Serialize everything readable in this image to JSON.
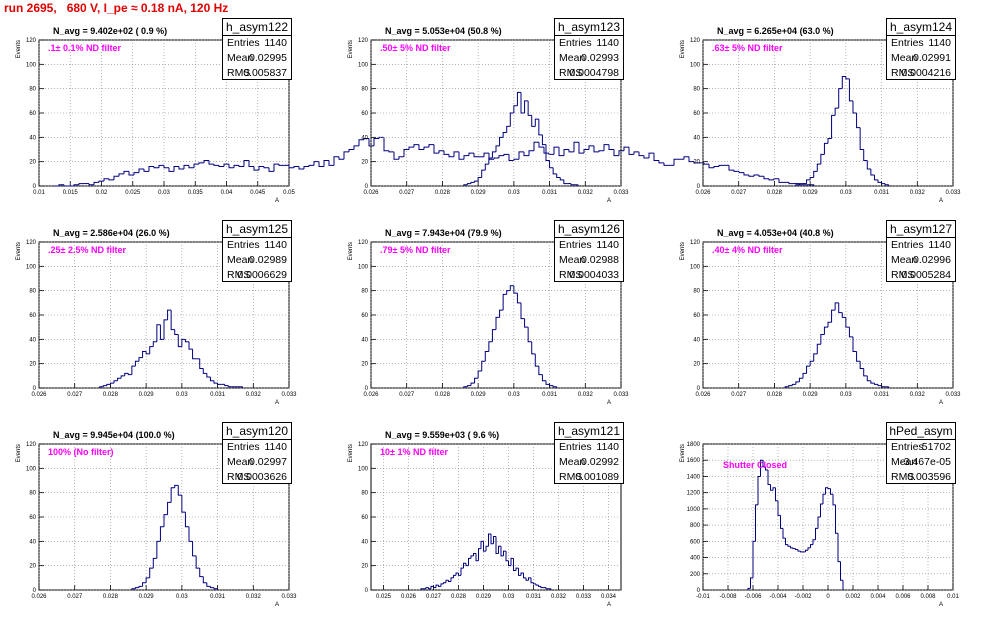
{
  "title": "run 2695,   680 V, I_pe ≈ 0.18 nA, 120 Hz",
  "chart_data": [
    {
      "type": "bar",
      "ylabel": "Events",
      "xlabel": "A",
      "xlim": [
        0.01,
        0.05
      ],
      "ylim": [
        0,
        120
      ],
      "xticks": [
        0.01,
        0.015,
        0.02,
        0.025,
        0.03,
        0.035,
        0.04,
        0.045,
        0.05
      ],
      "xtick_labels": [
        "0.01",
        "0.015",
        "0.02",
        "0.025",
        "0.03",
        "0.035",
        "0.04",
        "0.045",
        "0.05"
      ],
      "yticks": [
        0,
        20,
        40,
        60,
        80,
        100,
        120
      ],
      "ytick_labels": [
        "0",
        "20",
        "40",
        "60",
        "80",
        "100",
        "120"
      ],
      "grid": true,
      "bin_low": 0.0124,
      "bin_width": 0.0008,
      "values": [
        0,
        1,
        0,
        0,
        1,
        2,
        2,
        1,
        3,
        4,
        6,
        5,
        8,
        10,
        12,
        9,
        11,
        14,
        12,
        16,
        15,
        17,
        15,
        12,
        16,
        14,
        17,
        15,
        18,
        19,
        21,
        18,
        17,
        16,
        18,
        15,
        17,
        16,
        21,
        16,
        13,
        16,
        15,
        12,
        18,
        17,
        17,
        15,
        16,
        14,
        16,
        17,
        20,
        16,
        21,
        17,
        24,
        22,
        28,
        30,
        33,
        38,
        39,
        33,
        39,
        40,
        29,
        28,
        22,
        24,
        30,
        32,
        34,
        30,
        32,
        34,
        27,
        29,
        26,
        24,
        28,
        22,
        25,
        27,
        24,
        24,
        27,
        22,
        23,
        25,
        26,
        21,
        22,
        28,
        25,
        29,
        36,
        32,
        27,
        26,
        32,
        25,
        30,
        28,
        36,
        27,
        30,
        33,
        28,
        29,
        34,
        30,
        25,
        29,
        32,
        26,
        28,
        25,
        23,
        27,
        21,
        19,
        17,
        17,
        22,
        22,
        24,
        20,
        19,
        19,
        18,
        15,
        16,
        17,
        17,
        13,
        12,
        11,
        9,
        8,
        9,
        8,
        6,
        5,
        6,
        3,
        3,
        2,
        2,
        1,
        1,
        1
      ],
      "stats": {
        "name": "h_asym122",
        "entries": "1140",
        "mean": "0.02995",
        "rms": "0.005837"
      },
      "annotations": [
        "N_avg = 9.402e+02 ( 0.9 %)",
        ".1± 0.1% ND filter"
      ]
    },
    {
      "type": "bar",
      "ylabel": "Events",
      "xlabel": "A",
      "xlim": [
        0.026,
        0.033
      ],
      "ylim": [
        0,
        120
      ],
      "xticks": [
        0.026,
        0.027,
        0.028,
        0.029,
        0.03,
        0.031,
        0.032,
        0.033
      ],
      "xtick_labels": [
        "0.026",
        "0.027",
        "0.028",
        "0.029",
        "0.03",
        "0.031",
        "0.032",
        "0.033"
      ],
      "yticks": [
        0,
        20,
        40,
        60,
        80,
        100,
        120
      ],
      "ytick_labels": [
        "0",
        "20",
        "40",
        "60",
        "80",
        "100",
        "120"
      ],
      "grid": true,
      "bin_low": 0.0286,
      "bin_width": 0.0001,
      "values": [
        1,
        2,
        3,
        4,
        7,
        13,
        18,
        23,
        28,
        33,
        40,
        44,
        49,
        60,
        66,
        77,
        60,
        70,
        58,
        49,
        55,
        42,
        34,
        21,
        15,
        10,
        7,
        5,
        2,
        2,
        1,
        1
      ],
      "stats": {
        "name": "h_asym123",
        "entries": "1140",
        "mean": "0.02993",
        "rms": "0.0004798"
      },
      "annotations": [
        "N_avg = 5.053e+04 (50.8 %)",
        ".50± 5% ND filter"
      ]
    },
    {
      "type": "bar",
      "ylabel": "Events",
      "xlabel": "A",
      "xlim": [
        0.026,
        0.033
      ],
      "ylim": [
        0,
        120
      ],
      "xticks": [
        0.026,
        0.027,
        0.028,
        0.029,
        0.03,
        0.031,
        0.032,
        0.033
      ],
      "xtick_labels": [
        "0.026",
        "0.027",
        "0.028",
        "0.029",
        "0.03",
        "0.031",
        "0.032",
        "0.033"
      ],
      "yticks": [
        0,
        20,
        40,
        60,
        80,
        100,
        120
      ],
      "ytick_labels": [
        "0",
        "20",
        "40",
        "60",
        "80",
        "100",
        "120"
      ],
      "grid": true,
      "bin_low": 0.0286,
      "bin_width": 0.0001,
      "values": [
        1,
        2,
        2,
        5,
        7,
        12,
        18,
        26,
        35,
        39,
        58,
        64,
        80,
        90,
        88,
        70,
        60,
        48,
        30,
        21,
        14,
        9,
        5,
        3,
        2,
        1
      ],
      "stats": {
        "name": "h_asym124",
        "entries": "1140",
        "mean": "0.02991",
        "rms": "0.0004216"
      },
      "annotations": [
        "N_avg = 6.265e+04 (63.0 %)",
        ".63± 5% ND filter"
      ]
    },
    {
      "type": "bar",
      "ylabel": "Events",
      "xlabel": "A",
      "xlim": [
        0.026,
        0.033
      ],
      "ylim": [
        0,
        120
      ],
      "xticks": [
        0.026,
        0.027,
        0.028,
        0.029,
        0.03,
        0.031,
        0.032,
        0.033
      ],
      "xtick_labels": [
        "0.026",
        "0.027",
        "0.028",
        "0.029",
        "0.03",
        "0.031",
        "0.032",
        "0.033"
      ],
      "yticks": [
        0,
        20,
        40,
        60,
        80,
        100,
        120
      ],
      "ytick_labels": [
        "0",
        "20",
        "40",
        "60",
        "80",
        "100",
        "120"
      ],
      "grid": true,
      "bin_low": 0.0277,
      "bin_width": 0.0001,
      "values": [
        1,
        2,
        3,
        4,
        6,
        8,
        10,
        12,
        11,
        18,
        22,
        25,
        30,
        28,
        34,
        38,
        52,
        40,
        56,
        64,
        48,
        44,
        34,
        40,
        38,
        32,
        24,
        24,
        16,
        12,
        9,
        6,
        4,
        3,
        3,
        2,
        1,
        1,
        1,
        1
      ],
      "stats": {
        "name": "h_asym125",
        "entries": "1140",
        "mean": "0.02989",
        "rms": "0.0006629"
      },
      "annotations": [
        "N_avg = 2.586e+04 (26.0 %)",
        ".25± 2.5% ND filter"
      ]
    },
    {
      "type": "bar",
      "ylabel": "Events",
      "xlabel": "A",
      "xlim": [
        0.026,
        0.033
      ],
      "ylim": [
        0,
        120
      ],
      "xticks": [
        0.026,
        0.027,
        0.028,
        0.029,
        0.03,
        0.031,
        0.032,
        0.033
      ],
      "xtick_labels": [
        "0.026",
        "0.027",
        "0.028",
        "0.029",
        "0.03",
        "0.031",
        "0.032",
        "0.033"
      ],
      "yticks": [
        0,
        20,
        40,
        60,
        80,
        100,
        120
      ],
      "ytick_labels": [
        "0",
        "20",
        "40",
        "60",
        "80",
        "100",
        "120"
      ],
      "grid": true,
      "bin_low": 0.0286,
      "bin_width": 0.0001,
      "values": [
        1,
        2,
        4,
        8,
        14,
        22,
        30,
        38,
        48,
        58,
        64,
        77,
        80,
        84,
        78,
        70,
        57,
        50,
        38,
        28,
        18,
        11,
        6,
        3,
        2,
        1
      ],
      "stats": {
        "name": "h_asym126",
        "entries": "1140",
        "mean": "0.02988",
        "rms": "0.0004033"
      },
      "annotations": [
        "N_avg = 7.943e+04 (79.9 %)",
        ".79± 5% ND filter"
      ]
    },
    {
      "type": "bar",
      "ylabel": "Events",
      "xlabel": "A",
      "xlim": [
        0.026,
        0.033
      ],
      "ylim": [
        0,
        120
      ],
      "xticks": [
        0.026,
        0.027,
        0.028,
        0.029,
        0.03,
        0.031,
        0.032,
        0.033
      ],
      "xtick_labels": [
        "0.026",
        "0.027",
        "0.028",
        "0.029",
        "0.03",
        "0.031",
        "0.032",
        "0.033"
      ],
      "yticks": [
        0,
        20,
        40,
        60,
        80,
        100,
        120
      ],
      "ytick_labels": [
        "0",
        "20",
        "40",
        "60",
        "80",
        "100",
        "120"
      ],
      "grid": true,
      "bin_low": 0.0283,
      "bin_width": 0.0001,
      "values": [
        1,
        2,
        3,
        5,
        8,
        12,
        18,
        22,
        28,
        36,
        44,
        50,
        54,
        64,
        70,
        62,
        58,
        50,
        42,
        30,
        22,
        16,
        10,
        6,
        4,
        3,
        2,
        1,
        1
      ],
      "stats": {
        "name": "h_asym127",
        "entries": "1140",
        "mean": "0.02996",
        "rms": "0.0005284"
      },
      "annotations": [
        "N_avg = 4.053e+04 (40.8 %)",
        ".40± 4% ND filter"
      ]
    },
    {
      "type": "bar",
      "ylabel": "Events",
      "xlabel": "A",
      "xlim": [
        0.026,
        0.033
      ],
      "ylim": [
        0,
        120
      ],
      "xticks": [
        0.026,
        0.027,
        0.028,
        0.029,
        0.03,
        0.031,
        0.032,
        0.033
      ],
      "xtick_labels": [
        "0.026",
        "0.027",
        "0.028",
        "0.029",
        "0.03",
        "0.031",
        "0.032",
        "0.033"
      ],
      "yticks": [
        0,
        20,
        40,
        60,
        80,
        100,
        120
      ],
      "ytick_labels": [
        "0",
        "20",
        "40",
        "60",
        "80",
        "100",
        "120"
      ],
      "grid": true,
      "bin_low": 0.0286,
      "bin_width": 0.0001,
      "values": [
        1,
        2,
        3,
        6,
        10,
        18,
        26,
        40,
        52,
        62,
        72,
        84,
        86,
        78,
        64,
        52,
        40,
        28,
        18,
        11,
        6,
        3,
        2,
        1
      ],
      "stats": {
        "name": "h_asym120",
        "entries": "1140",
        "mean": "0.02997",
        "rms": "0.0003626"
      },
      "annotations": [
        "N_avg = 9.945e+04 (100.0 %)",
        "100% (No filter)"
      ]
    },
    {
      "type": "bar",
      "ylabel": "Events",
      "xlabel": "A",
      "xlim": [
        0.0245,
        0.0345
      ],
      "ylim": [
        0,
        120
      ],
      "xticks": [
        0.025,
        0.026,
        0.027,
        0.028,
        0.029,
        0.03,
        0.031,
        0.032,
        0.033,
        0.034
      ],
      "xtick_labels": [
        "0.025",
        "0.026",
        "0.027",
        "0.028",
        "0.029",
        "0.03",
        "0.031",
        "0.032",
        "0.033",
        "0.034"
      ],
      "yticks": [
        0,
        20,
        40,
        60,
        80,
        100,
        120
      ],
      "ytick_labels": [
        "0",
        "20",
        "40",
        "60",
        "80",
        "100",
        "120"
      ],
      "grid": true,
      "bin_low": 0.0265,
      "bin_width": 0.0001,
      "values": [
        1,
        1,
        2,
        1,
        3,
        2,
        4,
        3,
        5,
        6,
        8,
        7,
        10,
        12,
        14,
        12,
        18,
        22,
        20,
        26,
        28,
        30,
        24,
        34,
        40,
        32,
        36,
        46,
        38,
        44,
        30,
        36,
        28,
        32,
        24,
        20,
        26,
        16,
        18,
        12,
        14,
        10,
        8,
        10,
        6,
        5,
        4,
        3,
        2,
        2,
        1,
        1
      ],
      "stats": {
        "name": "h_asym121",
        "entries": "1140",
        "mean": "0.02992",
        "rms": "0.001089"
      },
      "annotations": [
        "N_avg = 9.559e+03 ( 9.6 %)",
        "10± 1% ND filter"
      ]
    },
    {
      "type": "bar",
      "ylabel": "Events",
      "xlabel": "A",
      "xlim": [
        -0.01,
        0.01
      ],
      "ylim": [
        0,
        1800
      ],
      "xticks": [
        -0.01,
        -0.008,
        -0.006,
        -0.004,
        -0.002,
        0,
        0.002,
        0.004,
        0.006,
        0.008,
        0.01
      ],
      "xtick_labels": [
        "-0.01",
        "-0.008",
        "-0.006",
        "-0.004",
        "-0.002",
        "0",
        "0.002",
        "0.004",
        "0.006",
        "0.008",
        "0.01"
      ],
      "yticks": [
        0,
        200,
        400,
        600,
        800,
        1000,
        1200,
        1400,
        1600,
        1800
      ],
      "ytick_labels": [
        "0",
        "200",
        "400",
        "600",
        "800",
        "1000",
        "1200",
        "1400",
        "1600",
        "1800"
      ],
      "grid": true,
      "bin_low": -0.0064,
      "bin_width": 0.0002,
      "values": [
        20,
        150,
        600,
        1050,
        1400,
        1600,
        1520,
        1480,
        1300,
        1230,
        1260,
        1100,
        920,
        760,
        640,
        560,
        540,
        520,
        510,
        500,
        480,
        470,
        470,
        490,
        520,
        560,
        620,
        760,
        900,
        1060,
        1180,
        1260,
        1250,
        1180,
        1050,
        700,
        350,
        120
      ],
      "stats": {
        "name": "hPed_asym",
        "entries": "51702",
        "mean": "-3.467e-05",
        "rms": "0.003596"
      },
      "annotations": [
        "Shutter Closed"
      ]
    }
  ]
}
